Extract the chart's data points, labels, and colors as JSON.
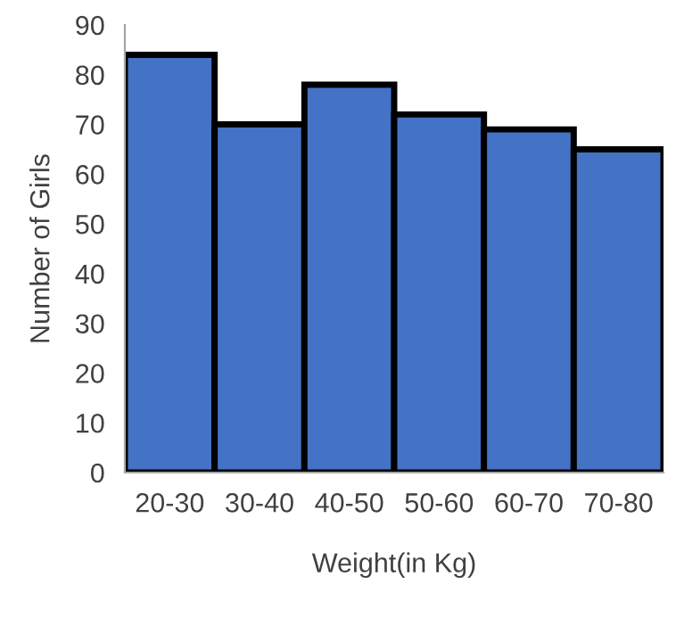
{
  "chart_data": {
    "type": "bar",
    "xlabel": "Weight(in Kg)",
    "ylabel": "Number of Girls",
    "categories": [
      "20-30",
      "30-40",
      "40-50",
      "50-60",
      "60-70",
      "70-80"
    ],
    "values": [
      84,
      70,
      78,
      72,
      69,
      65
    ],
    "color": "#4472c4",
    "ylim": [
      0,
      90
    ],
    "yticks": [
      0,
      10,
      20,
      30,
      40,
      50,
      60,
      70,
      80,
      90
    ],
    "grid": false,
    "legend": false
  }
}
